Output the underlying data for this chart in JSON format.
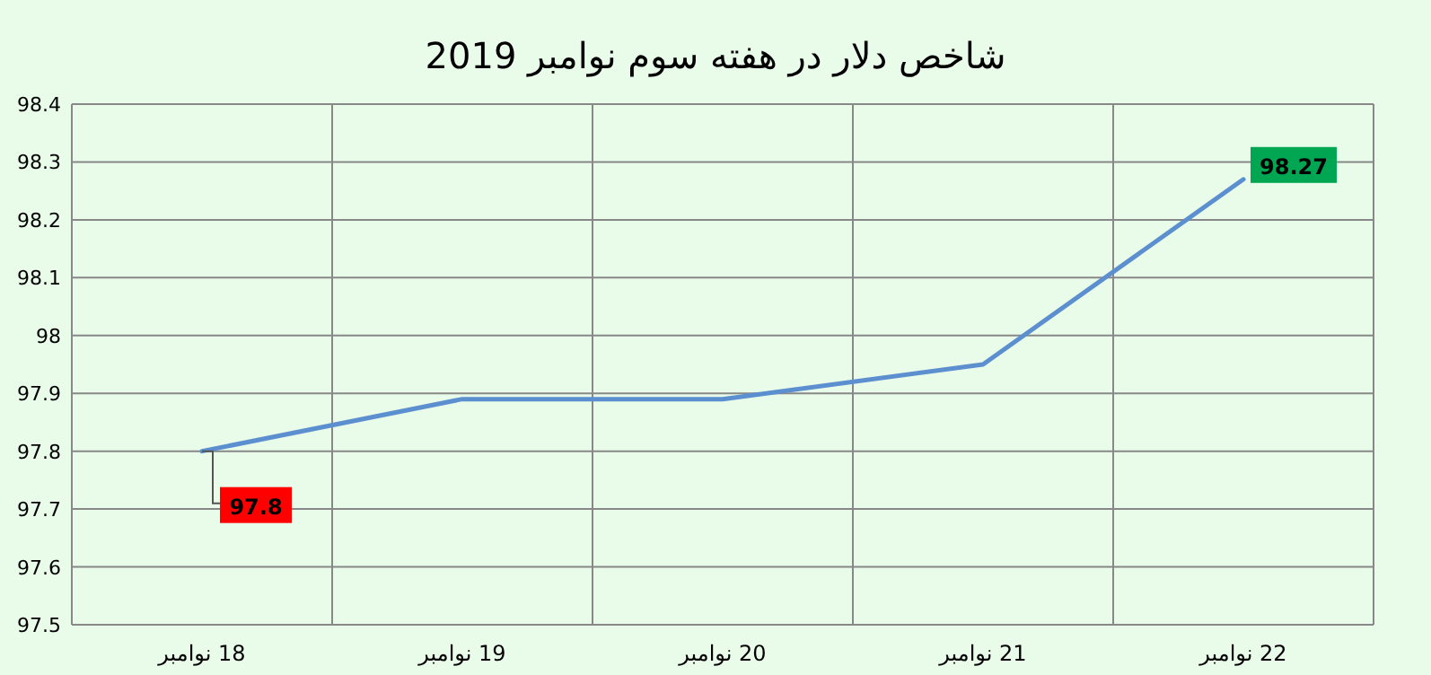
{
  "chart_data": {
    "type": "line",
    "title": "شاخص دلار در هفته سوم نوامبر 2019",
    "categories": [
      "18 نوامبر",
      "19 نوامبر",
      "20 نوامبر",
      "21 نوامبر",
      "22 نوامبر"
    ],
    "series": [
      {
        "color": "#5b8fcf",
        "values": [
          97.8,
          97.89,
          97.89,
          97.95,
          98.27
        ],
        "value_labels": [
          "97.8",
          null,
          null,
          null,
          "98.27"
        ]
      }
    ],
    "ylim": [
      97.5,
      98.4
    ],
    "yticks": [
      97.5,
      97.6,
      97.7,
      97.8,
      97.9,
      98,
      98.1,
      98.2,
      98.3,
      98.4
    ],
    "grid": true,
    "marker": "none",
    "line_style": "solid"
  }
}
